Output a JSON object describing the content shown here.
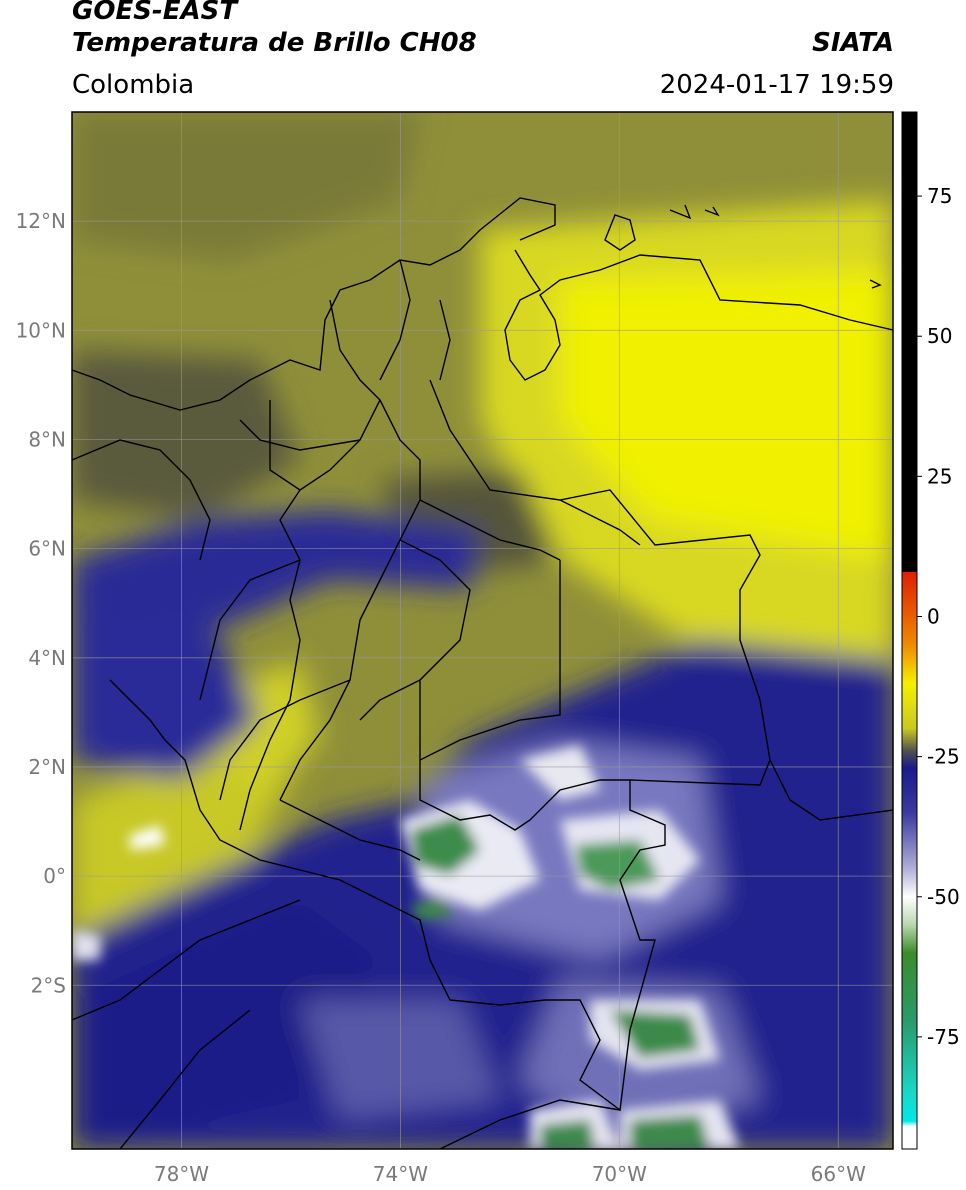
{
  "header": {
    "satellite": "GOES-EAST",
    "product": "Temperatura de Brillo CH08",
    "organization": "SIATA",
    "region": "Colombia",
    "timestamp": "2024-01-17 19:59"
  },
  "map": {
    "lon_range": [
      -80,
      -65
    ],
    "lat_range": [
      -5,
      14
    ],
    "lat_ticks": [
      {
        "value": 12,
        "label": "12°N"
      },
      {
        "value": 10,
        "label": "10°N"
      },
      {
        "value": 8,
        "label": "8°N"
      },
      {
        "value": 6,
        "label": "6°N"
      },
      {
        "value": 4,
        "label": "4°N"
      },
      {
        "value": 2,
        "label": "2°N"
      },
      {
        "value": 0,
        "label": "0°"
      },
      {
        "value": -2,
        "label": "2°S"
      }
    ],
    "lon_ticks": [
      {
        "value": -78,
        "label": "78°W"
      },
      {
        "value": -74,
        "label": "74°W"
      },
      {
        "value": -70,
        "label": "70°W"
      },
      {
        "value": -66,
        "label": "66°W"
      }
    ],
    "gridlines": true
  },
  "colorbar": {
    "range": [
      -95,
      90
    ],
    "ticks": [
      {
        "value": 75,
        "label": "75"
      },
      {
        "value": 50,
        "label": "50"
      },
      {
        "value": 25,
        "label": "25"
      },
      {
        "value": 0,
        "label": "0"
      },
      {
        "value": -25,
        "label": "-25"
      },
      {
        "value": -50,
        "label": "-50"
      },
      {
        "value": -75,
        "label": "-75"
      }
    ],
    "stops": [
      {
        "value": 90,
        "color": "#000000"
      },
      {
        "value": 8,
        "color": "#000000"
      },
      {
        "value": 7.9,
        "color": "#e11d00"
      },
      {
        "value": -5,
        "color": "#f08a00"
      },
      {
        "value": -12,
        "color": "#f5f000"
      },
      {
        "value": -20,
        "color": "#c8c820"
      },
      {
        "value": -24,
        "color": "#505050"
      },
      {
        "value": -27,
        "color": "#1a1a8c"
      },
      {
        "value": -35,
        "color": "#3a3aa0"
      },
      {
        "value": -45,
        "color": "#b0b0d8"
      },
      {
        "value": -50,
        "color": "#ffffff"
      },
      {
        "value": -55,
        "color": "#b8d8b0"
      },
      {
        "value": -60,
        "color": "#3c8c2c"
      },
      {
        "value": -72,
        "color": "#2a9a6a"
      },
      {
        "value": -85,
        "color": "#18d8c8"
      },
      {
        "value": -90,
        "color": "#00e8e8"
      },
      {
        "value": -91,
        "color": "#ffffff"
      },
      {
        "value": -95,
        "color": "#ffffff"
      }
    ]
  }
}
